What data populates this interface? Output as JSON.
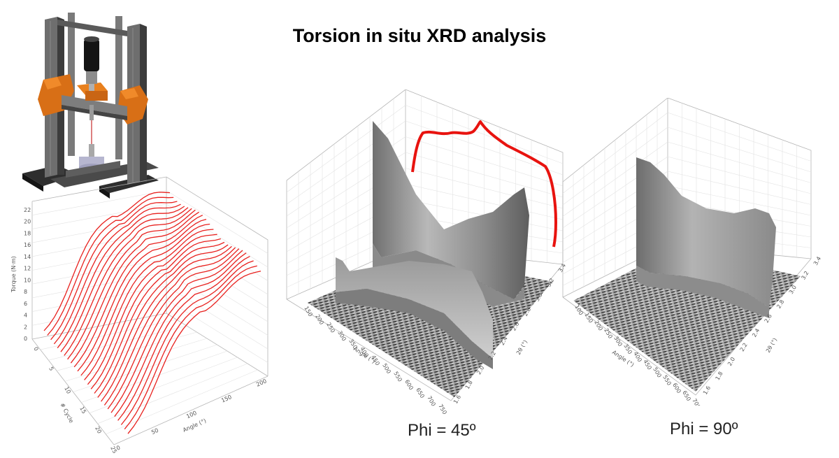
{
  "title": "Torsion in situ XRD analysis",
  "panels": {
    "left_plot": {
      "z_ticks": [
        "0",
        "2",
        "4",
        "6",
        "8",
        "10",
        "12",
        "14",
        "16",
        "18",
        "20",
        "22"
      ],
      "z_label": "Torque (N·m)",
      "x_label": "# Cycle",
      "x_ticks": [
        "0",
        "5",
        "10",
        "15",
        "20",
        "25"
      ],
      "y_label": "Angle (°)",
      "y_ticks": [
        "0",
        "50",
        "100",
        "150",
        "200"
      ],
      "curve_color": "#e8211e"
    },
    "mid_plot": {
      "angle_label": "Angle (°)",
      "angle_ticks": [
        "150",
        "200",
        "250",
        "300",
        "350",
        "400",
        "450",
        "500",
        "550",
        "600",
        "650",
        "700",
        "750"
      ],
      "theta_label": "2θ (°)",
      "theta_ticks": [
        "1.6",
        "1.8",
        "2.0",
        "2.2",
        "2.4",
        "2.6",
        "2.8",
        "3.0",
        "3.2",
        "3.4"
      ],
      "caption": "Phi = 45º",
      "torque_curve_color": "#e8130f"
    },
    "right_plot": {
      "angle_label": "Angle (°)",
      "angle_ticks": [
        "100",
        "150",
        "200",
        "250",
        "300",
        "350",
        "400",
        "450",
        "500",
        "550",
        "600",
        "650",
        "700"
      ],
      "theta_label": "2θ (°)",
      "theta_ticks": [
        "1.6",
        "1.8",
        "2.0",
        "2.2",
        "2.4",
        "2.6",
        "2.8",
        "3.0",
        "3.2",
        "3.4"
      ],
      "caption": "Phi = 90º"
    }
  }
}
